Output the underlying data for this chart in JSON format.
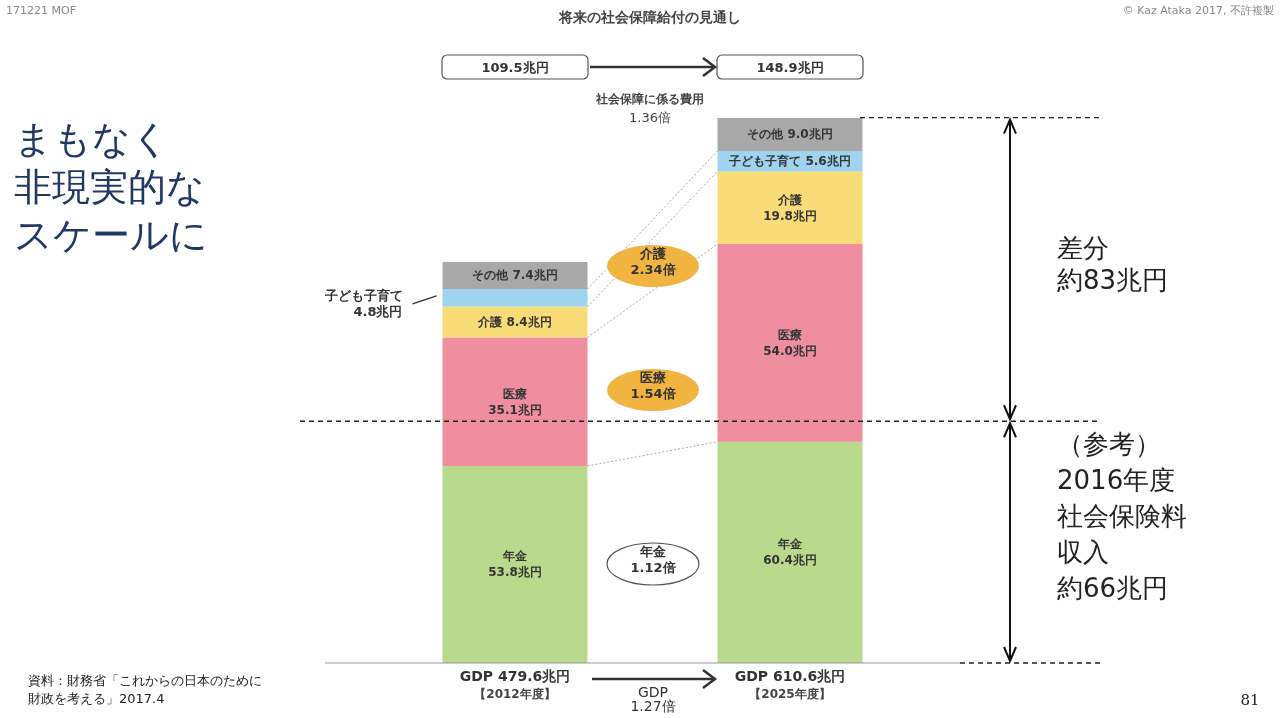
{
  "chart_data": {
    "type": "bar",
    "stacked": true,
    "title": "将来の社会保障給付の見通し",
    "categories": [
      "【2012年度】",
      "【2025年度】"
    ],
    "series": [
      {
        "name": "年金",
        "color": "#b9d98c",
        "values": [
          53.8,
          60.4
        ],
        "value_labels": [
          "53.8兆円",
          "60.4兆円"
        ]
      },
      {
        "name": "医療",
        "color": "#ee8e9e",
        "values": [
          35.1,
          54.0
        ],
        "value_labels": [
          "35.1兆円",
          "54.0兆円"
        ]
      },
      {
        "name": "介護",
        "color": "#f8dc78",
        "values": [
          8.4,
          19.8
        ],
        "value_labels": [
          "8.4兆円",
          "19.8兆円"
        ]
      },
      {
        "name": "子ども子育て",
        "color": "#9fd3ee",
        "values": [
          4.8,
          5.6
        ],
        "value_labels": [
          "4.8兆円",
          "5.6兆円"
        ]
      },
      {
        "name": "その他",
        "color": "#a8a8a8",
        "values": [
          7.4,
          9.0
        ],
        "value_labels": [
          "7.4兆円",
          "9.0兆円"
        ]
      }
    ],
    "ref_lines": [
      {
        "axis": "y",
        "value": 148.9,
        "line_style": "dashed"
      },
      {
        "axis": "y",
        "value": 66,
        "line_style": "dashed"
      }
    ],
    "annotations": [
      "109.5兆円",
      "148.9兆円",
      "社会保障に係る費用 1.36倍",
      "介護 2.34倍",
      "医療 1.54倍",
      "年金 1.12倍",
      "GDP 479.6兆円",
      "GDP 610.6兆円",
      "GDP 1.27倍",
      "まもなく",
      "非現実的な",
      "スケールに",
      "差分",
      "約83兆円",
      "（参考）",
      "2016年度",
      "社会保険料",
      "収入",
      "約66兆円",
      "資料：財務省「これからの日本のために",
      "財政を考える」2017.4",
      "171221 MOF",
      "© Kaz Ataka 2017, 不許複製",
      "81"
    ]
  }
}
